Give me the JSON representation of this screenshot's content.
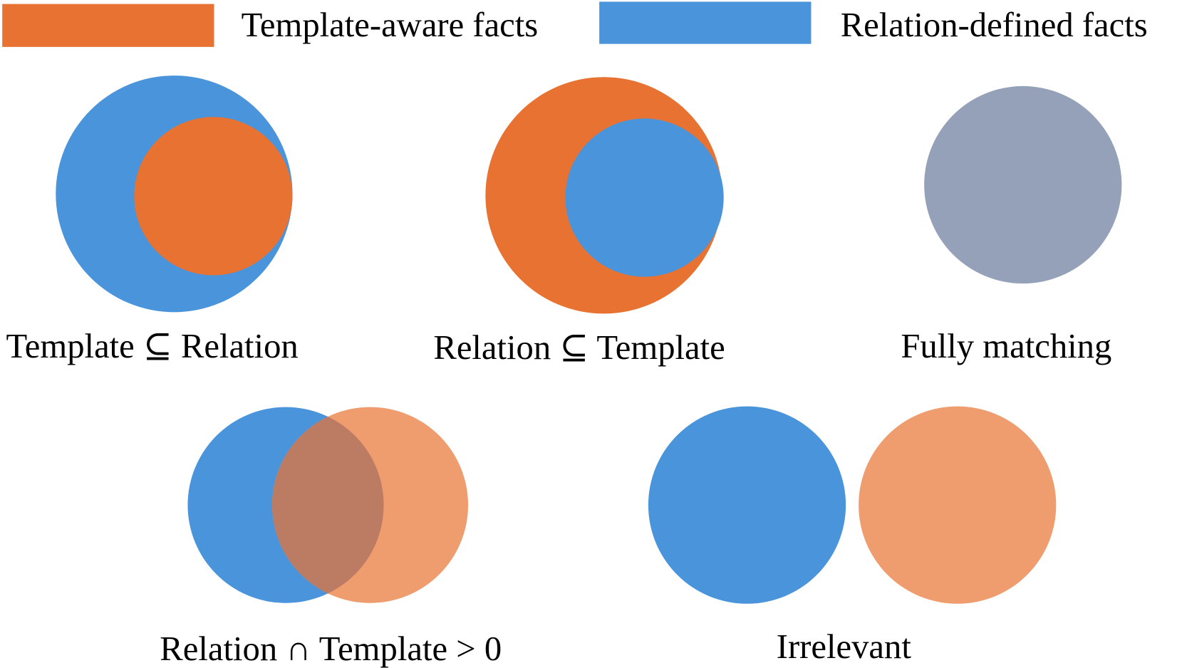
{
  "legend": [
    {
      "label": "Template-aware facts",
      "color": "#e87232"
    },
    {
      "label": "Relation-defined facts",
      "color": "#4a94db"
    }
  ],
  "colors": {
    "template": "#e87232",
    "relation": "#4a94db",
    "template_light": "#ef9c6e",
    "matching": "#95a0b9",
    "overlap": "#bb7c63"
  },
  "cases": [
    {
      "label": "Template ⊆ Relation"
    },
    {
      "label": "Relation ⊆ Template"
    },
    {
      "label": "Fully matching"
    },
    {
      "label": "Relation ∩ Template > 0"
    },
    {
      "label": "Irrelevant"
    }
  ]
}
